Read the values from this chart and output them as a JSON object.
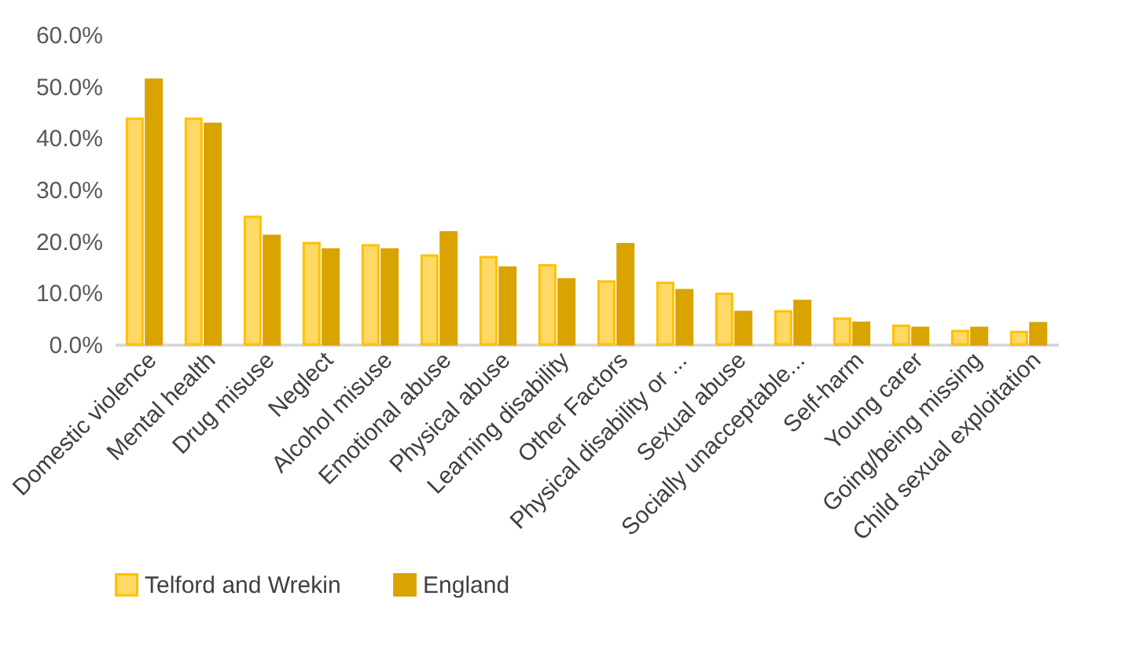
{
  "chart_data": {
    "type": "bar",
    "categories": [
      "Domestic violence",
      "Mental health",
      "Drug misuse",
      "Neglect",
      "Alcohol misuse",
      "Emotional abuse",
      "Physical abuse",
      "Learning disability",
      "Other Factors",
      "Physical disability or ...",
      "Sexual abuse",
      "Socially unacceptable...",
      "Self-harm",
      "Young carer",
      "Going/being missing",
      "Child sexual exploitation"
    ],
    "series": [
      {
        "name": "Telford and Wrekin",
        "color": "#ffd966",
        "values": [
          43.7,
          43.7,
          24.7,
          19.6,
          19.2,
          17.2,
          16.9,
          15.3,
          12.2,
          11.9,
          9.8,
          6.4,
          5.0,
          3.6,
          2.6,
          2.4
        ]
      },
      {
        "name": "England",
        "color": "#d9a300",
        "values": [
          51.3,
          42.7,
          21.0,
          18.4,
          18.4,
          21.7,
          14.9,
          12.6,
          19.4,
          10.5,
          6.3,
          8.4,
          4.2,
          3.2,
          3.2,
          4.1
        ]
      }
    ],
    "ylim": [
      0,
      60
    ],
    "yticks": [
      {
        "value": 0,
        "label": "0.0%"
      },
      {
        "value": 10,
        "label": "10.0%"
      },
      {
        "value": 20,
        "label": "20.0%"
      },
      {
        "value": 30,
        "label": "30.0%"
      },
      {
        "value": 40,
        "label": "40.0%"
      },
      {
        "value": 50,
        "label": "50.0%"
      },
      {
        "value": 60,
        "label": "60.0%"
      }
    ],
    "grid": false,
    "legend": "bottom left"
  }
}
